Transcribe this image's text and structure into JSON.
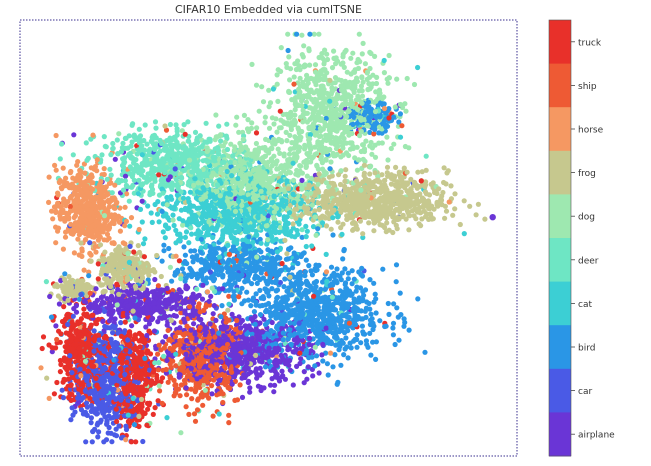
{
  "chart_data": {
    "type": "scatter",
    "title": "CIFAR10 Embedded via cumlTSNE",
    "xlabel": "",
    "ylabel": "",
    "grid": false,
    "axis_ticks": false,
    "legend": "colorbar-right",
    "classes": [
      {
        "name": "airplane",
        "color": "#6a35d6"
      },
      {
        "name": "car",
        "color": "#4a5ae6"
      },
      {
        "name": "bird",
        "color": "#2a96e6"
      },
      {
        "name": "cat",
        "color": "#3ccfd4"
      },
      {
        "name": "deer",
        "color": "#6ee6c4"
      },
      {
        "name": "dog",
        "color": "#9ee8b0"
      },
      {
        "name": "frog",
        "color": "#c6c88e"
      },
      {
        "name": "horse",
        "color": "#f59862"
      },
      {
        "name": "ship",
        "color": "#ee5a34"
      },
      {
        "name": "truck",
        "color": "#e8302a"
      }
    ],
    "clusters": [
      {
        "class": "dog",
        "cx": 0.63,
        "cy": 0.8,
        "rx": 0.11,
        "ry": 0.13,
        "weight": 6
      },
      {
        "class": "dog",
        "cx": 0.47,
        "cy": 0.64,
        "rx": 0.13,
        "ry": 0.1,
        "weight": 5
      },
      {
        "class": "deer",
        "cx": 0.3,
        "cy": 0.68,
        "rx": 0.14,
        "ry": 0.07,
        "weight": 5
      },
      {
        "class": "cat",
        "cx": 0.43,
        "cy": 0.56,
        "rx": 0.15,
        "ry": 0.08,
        "weight": 6
      },
      {
        "class": "frog",
        "cx": 0.72,
        "cy": 0.59,
        "rx": 0.14,
        "ry": 0.06,
        "weight": 6
      },
      {
        "class": "frog",
        "cx": 0.2,
        "cy": 0.43,
        "rx": 0.05,
        "ry": 0.05,
        "weight": 2
      },
      {
        "class": "frog",
        "cx": 0.09,
        "cy": 0.38,
        "rx": 0.03,
        "ry": 0.02,
        "weight": 1
      },
      {
        "class": "horse",
        "cx": 0.12,
        "cy": 0.57,
        "rx": 0.06,
        "ry": 0.09,
        "weight": 4
      },
      {
        "class": "bird",
        "cx": 0.6,
        "cy": 0.32,
        "rx": 0.13,
        "ry": 0.1,
        "weight": 6
      },
      {
        "class": "bird",
        "cx": 0.43,
        "cy": 0.43,
        "rx": 0.12,
        "ry": 0.06,
        "weight": 3
      },
      {
        "class": "bird",
        "cx": 0.72,
        "cy": 0.79,
        "rx": 0.04,
        "ry": 0.03,
        "weight": 1
      },
      {
        "class": "airplane",
        "cx": 0.43,
        "cy": 0.23,
        "rx": 0.14,
        "ry": 0.07,
        "weight": 6
      },
      {
        "class": "airplane",
        "cx": 0.24,
        "cy": 0.34,
        "rx": 0.12,
        "ry": 0.04,
        "weight": 3
      },
      {
        "class": "truck",
        "cx": 0.11,
        "cy": 0.22,
        "rx": 0.05,
        "ry": 0.1,
        "weight": 3
      },
      {
        "class": "truck",
        "cx": 0.22,
        "cy": 0.17,
        "rx": 0.04,
        "ry": 0.11,
        "weight": 3
      },
      {
        "class": "ship",
        "cx": 0.36,
        "cy": 0.21,
        "rx": 0.07,
        "ry": 0.1,
        "weight": 4
      },
      {
        "class": "car",
        "cx": 0.16,
        "cy": 0.16,
        "rx": 0.06,
        "ry": 0.12,
        "weight": 4
      }
    ],
    "outliers": [
      {
        "class": "airplane",
        "x": 0.97,
        "y": 0.55
      }
    ]
  }
}
